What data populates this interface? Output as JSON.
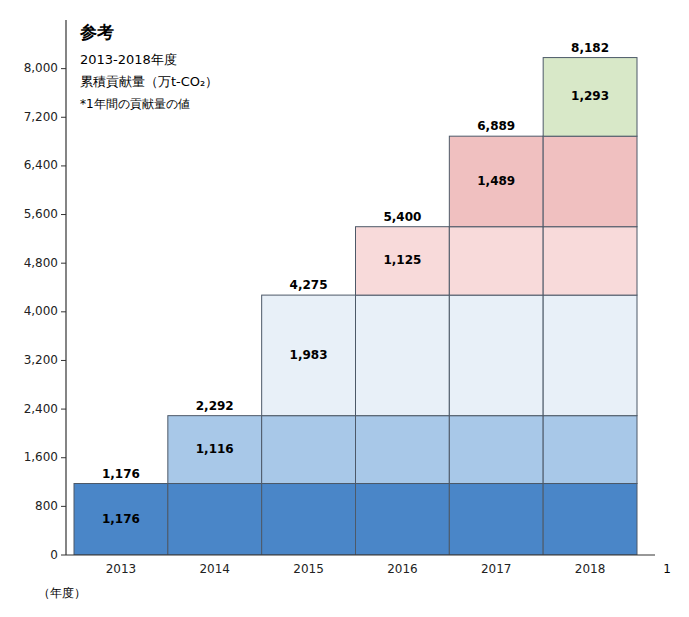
{
  "chart_data": {
    "type": "bar",
    "stacked": true,
    "title": "参考",
    "subtitle": "2013-2018年度",
    "y_label": "累積貢献量（万t-CO₂）",
    "x_label": "（年度）",
    "annotations": [
      "*1年間の貢献量の値",
      "1"
    ],
    "categories": [
      "2013",
      "2014",
      "2015",
      "2016",
      "2017",
      "2018"
    ],
    "series": [
      {
        "color": "#4a86c8",
        "values": [
          1176,
          1176,
          1176,
          1176,
          1176,
          1176
        ],
        "value_labels": [
          "1,176",
          null,
          null,
          null,
          null,
          null
        ]
      },
      {
        "color": "#a8c8e8",
        "values": [
          null,
          1116,
          1116,
          1116,
          1116,
          1116
        ],
        "value_labels": [
          null,
          "1,116",
          null,
          null,
          null,
          null
        ]
      },
      {
        "color": "#e8f0f8",
        "values": [
          null,
          null,
          1983,
          1983,
          1983,
          1983
        ],
        "value_labels": [
          null,
          null,
          "1,983",
          null,
          null,
          null
        ]
      },
      {
        "color": "#f8dada",
        "values": [
          null,
          null,
          null,
          1125,
          1125,
          1125
        ],
        "value_labels": [
          null,
          null,
          null,
          "1,125",
          null,
          null
        ]
      },
      {
        "color": "#f0c0c0",
        "values": [
          null,
          null,
          null,
          null,
          1489,
          1489
        ],
        "value_labels": [
          null,
          null,
          null,
          null,
          "1,489",
          null
        ]
      },
      {
        "color": "#d8e8c8",
        "values": [
          null,
          null,
          null,
          null,
          null,
          1293
        ],
        "value_labels": [
          null,
          null,
          null,
          null,
          null,
          "1,293"
        ]
      }
    ],
    "totals": [
      1176,
      2292,
      4275,
      5400,
      6889,
      8182
    ],
    "total_labels": [
      "1,176",
      "2,292",
      "4,275",
      "5,400",
      "6,889",
      "8,182"
    ],
    "data_labels": true,
    "ylim": [
      0,
      8800
    ],
    "yticks": [
      0,
      800,
      {
        "value": 1600,
        "label": "1,600"
      },
      {
        "value": 2400,
        "label": "2,400"
      },
      {
        "value": 3200,
        "label": "3,200"
      },
      {
        "value": 4000,
        "label": "4,000"
      },
      {
        "value": 4800,
        "label": "4,800"
      },
      {
        "value": 5600,
        "label": "5,600"
      },
      {
        "value": 6400,
        "label": "6,400"
      },
      {
        "value": 7200,
        "label": "7,200"
      },
      {
        "value": 8000,
        "label": "8,000"
      }
    ],
    "grid": false
  }
}
